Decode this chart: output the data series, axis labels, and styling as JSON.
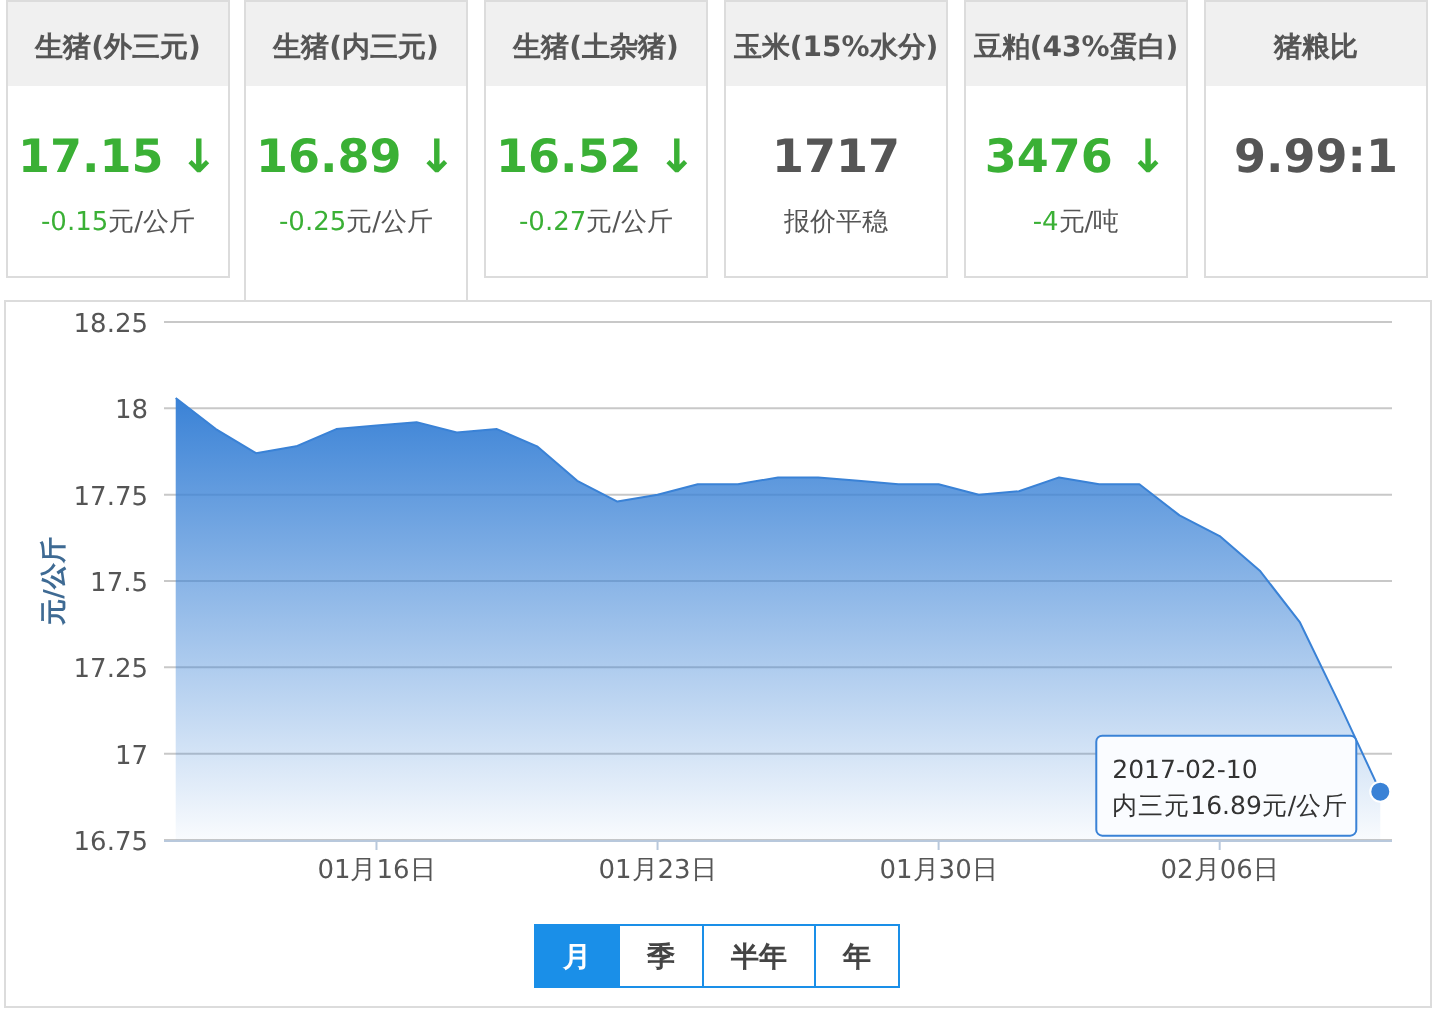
{
  "chart_data": [
    {
      "type": "other",
      "categories": [
        "生猪(外三元)",
        "生猪(内三元)",
        "生猪(土杂猪)",
        "玉米(15%水分)",
        "豆粕(43%蛋白)",
        "猪粮比"
      ],
      "value_labels": [
        "17.15 ↓",
        "16.89 ↓",
        "16.52 ↓",
        "1717",
        "3476  ↓",
        "9.99:1"
      ],
      "annotations": [
        "-0.15元/公斤",
        "-0.25元/公斤",
        "-0.27元/公斤",
        "报价平稳",
        "-4元/吨"
      ]
    },
    {
      "type": "area",
      "ylabel": "元/公斤",
      "x": [
        "2017-01-11",
        "2017-01-12",
        "2017-01-13",
        "2017-01-14",
        "2017-01-15",
        "2017-01-16",
        "2017-01-17",
        "2017-01-18",
        "2017-01-19",
        "2017-01-20",
        "2017-01-21",
        "2017-01-22",
        "2017-01-23",
        "2017-01-24",
        "2017-01-25",
        "2017-01-26",
        "2017-01-27",
        "2017-01-28",
        "2017-01-29",
        "2017-01-30",
        "2017-01-31",
        "2017-02-01",
        "2017-02-02",
        "2017-02-03",
        "2017-02-04",
        "2017-02-05",
        "2017-02-06",
        "2017-02-07",
        "2017-02-08",
        "2017-02-09",
        "2017-02-10"
      ],
      "series": [
        {
          "color": "#3a82d6",
          "values": [
            18.03,
            17.94,
            17.87,
            17.89,
            17.94,
            17.95,
            17.96,
            17.93,
            17.94,
            17.89,
            17.79,
            17.73,
            17.75,
            17.78,
            17.78,
            17.8,
            17.8,
            17.79,
            17.78,
            17.78,
            17.75,
            17.76,
            17.8,
            17.78,
            17.78,
            17.69,
            17.63,
            17.53,
            17.38,
            17.14,
            16.89
          ]
        }
      ],
      "xlim": [
        "2017-01-10T17:00",
        "2017-02-10T07:00"
      ],
      "xticks": [
        {
          "value": "2017-01-16",
          "label": "01月16日"
        },
        {
          "value": "2017-01-23",
          "label": "01月23日"
        },
        {
          "value": "2017-01-30",
          "label": "01月30日"
        },
        {
          "value": "2017-02-06",
          "label": "02月06日"
        }
      ],
      "ylim": [
        16.75,
        18.25
      ],
      "yticks": [
        16.75,
        17,
        17.25,
        17.5,
        17.75,
        18,
        18.25
      ],
      "grid": "y",
      "annotations": [
        {
          "text": "2017-02-10\n内三元16.89元/公斤",
          "x": "2017-02-10",
          "y": 16.89
        }
      ]
    },
    {
      "type": "other",
      "categories": [
        "月",
        "季",
        "半年",
        "年"
      ],
      "colors": [
        "#1a8fe8",
        "#ffffff",
        "#ffffff",
        "#ffffff"
      ]
    }
  ]
}
